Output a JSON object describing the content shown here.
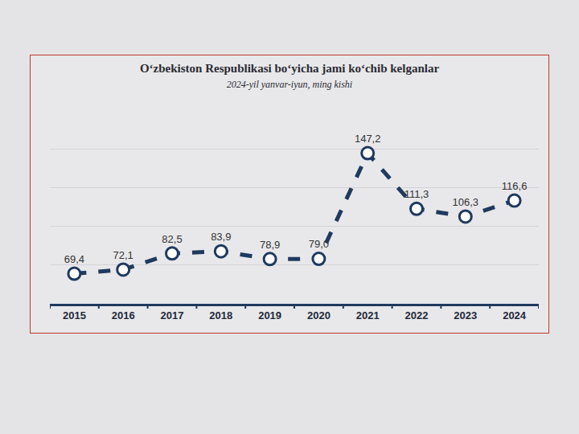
{
  "chart_data": {
    "type": "line",
    "title": "O‘zbekiston Respublikasi bo‘yicha jami ko‘chib kelganlar",
    "subtitle": "2024-yil yanvar-iyun, ming kishi",
    "categories": [
      "2015",
      "2016",
      "2017",
      "2018",
      "2019",
      "2020",
      "2021",
      "2022",
      "2023",
      "2024"
    ],
    "values": [
      69.4,
      72.1,
      82.5,
      83.9,
      78.9,
      79.0,
      147.2,
      111.3,
      106.3,
      116.6
    ],
    "value_labels": [
      "69,4",
      "72,1",
      "82,5",
      "83,9",
      "78,9",
      "79,0",
      "147,2",
      "111,3",
      "106,3",
      "116,6"
    ],
    "color": "#1f3a5f",
    "marker": "circle",
    "line_style": "dash",
    "data_labels": true,
    "ylim": [
      50,
      175
    ],
    "yticks": [
      50,
      75,
      100,
      125,
      150,
      175
    ],
    "grid": true,
    "tick_labels": "x"
  }
}
